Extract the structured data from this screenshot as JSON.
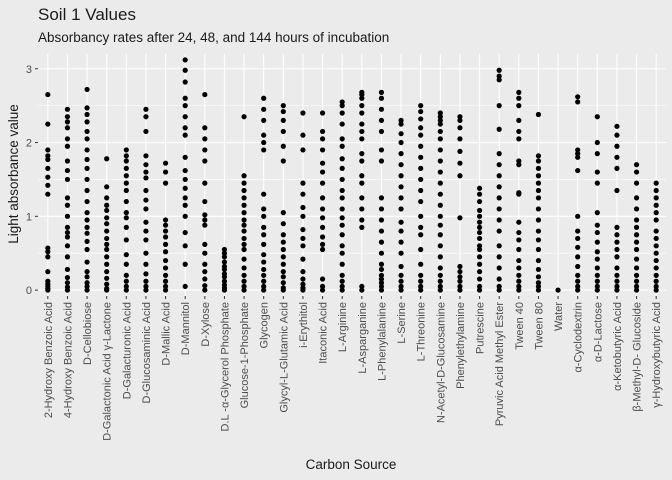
{
  "chart_data": {
    "type": "scatter",
    "title": "Soil 1 Values",
    "subtitle": "Absorbancy rates after 24, 48, and 144 hours of incubation",
    "xlabel": "Carbon Source",
    "ylabel": "Light absorbance value",
    "ylim": [
      -0.08,
      3.2
    ],
    "yticks": [
      0,
      1,
      2,
      3
    ],
    "grid": true,
    "legend": "none",
    "colors": {
      "panel": "#ebebeb",
      "grid": "#ffffff",
      "point": "#000000",
      "text": "#1a1a1a",
      "tick_text": "#4d4d4d"
    },
    "categories": [
      "2-Hydroxy Benzoic Acid",
      "4-Hydroxy Benzoic Acid",
      "D-Cellobiose",
      "D-Galactonic Acid γ-Lactone",
      "D-Galacturonic Acid",
      "D-Glucosaminic Acid",
      "D-Mallic Acid",
      "D-Mannitol",
      "D-Xylose",
      "D.L -α-Glycerol Phosphate",
      "Glucose-1-Phosphate",
      "Glycogen",
      "Glycyl-L-Glutamic Acid",
      "i-Erythitol",
      "Itaconic Acid",
      "L-Arginine",
      "L-Asparganine",
      "L-Phenylalanine",
      "L-Serine",
      "L-Threonine",
      "N-Acetyl-D-Glucosamine",
      "Phenylethylamine",
      "Putrescine",
      "Pyruvic Acid Methyl Ester",
      "Tween 40",
      "Tween 80",
      "Water",
      "α-Cyclodextrin",
      "α-D-Lactose",
      "α-Ketobutyric Acid",
      "β-Methyl-D- Glucoside",
      "γ-Hydroxybutyric Acid"
    ],
    "values": [
      [
        0.0,
        0.02,
        0.05,
        0.08,
        0.12,
        0.25,
        0.45,
        0.52,
        0.57,
        1.3,
        1.42,
        1.53,
        1.65,
        1.77,
        1.82,
        1.9,
        2.25,
        2.65
      ],
      [
        0.0,
        0.04,
        0.1,
        0.17,
        0.28,
        0.45,
        0.6,
        0.72,
        0.78,
        0.85,
        1.0,
        1.15,
        1.25,
        1.5,
        1.62,
        1.75,
        1.95,
        2.05,
        2.2,
        2.28,
        2.35,
        2.45
      ],
      [
        0.0,
        0.05,
        0.1,
        0.18,
        0.25,
        0.38,
        0.55,
        0.66,
        0.77,
        0.85,
        0.95,
        1.05,
        1.2,
        1.35,
        1.5,
        1.65,
        1.77,
        1.9,
        2.05,
        2.15,
        2.28,
        2.38,
        2.47,
        2.72
      ],
      [
        0.0,
        0.02,
        0.08,
        0.16,
        0.25,
        0.35,
        0.45,
        0.55,
        0.62,
        0.7,
        0.8,
        0.9,
        0.98,
        1.08,
        1.15,
        1.25,
        1.4,
        1.78
      ],
      [
        0.0,
        0.05,
        0.12,
        0.2,
        0.35,
        0.48,
        0.68,
        0.85,
        0.98,
        1.05,
        1.2,
        1.35,
        1.45,
        1.55,
        1.65,
        1.75,
        1.82,
        1.9
      ],
      [
        0.0,
        0.05,
        0.12,
        0.22,
        0.35,
        0.5,
        0.68,
        0.8,
        0.92,
        1.1,
        1.22,
        1.35,
        1.52,
        1.6,
        1.7,
        1.82,
        2.15,
        2.35,
        2.45
      ],
      [
        0.0,
        0.05,
        0.12,
        0.2,
        0.3,
        0.4,
        0.52,
        0.62,
        0.72,
        0.8,
        0.88,
        0.95,
        1.45,
        1.6,
        1.72
      ],
      [
        0.05,
        0.35,
        0.6,
        0.78,
        1.0,
        1.15,
        1.25,
        1.38,
        1.5,
        1.62,
        1.8,
        2.1,
        2.2,
        2.35,
        2.5,
        2.6,
        2.82,
        2.98,
        3.12
      ],
      [
        0.0,
        0.06,
        0.15,
        0.25,
        0.35,
        0.5,
        0.62,
        0.88,
        0.95,
        1.02,
        1.2,
        1.45,
        1.75,
        1.9,
        2.05,
        2.2,
        2.65
      ],
      [
        0.0,
        0.03,
        0.07,
        0.12,
        0.18,
        0.22,
        0.28,
        0.32,
        0.38,
        0.45,
        0.5,
        0.55
      ],
      [
        0.0,
        0.05,
        0.12,
        0.2,
        0.3,
        0.42,
        0.55,
        0.62,
        0.7,
        0.8,
        0.88,
        0.95,
        1.05,
        1.15,
        1.25,
        1.35,
        1.45,
        1.55,
        2.35
      ],
      [
        0.0,
        0.05,
        0.12,
        0.2,
        0.28,
        0.38,
        0.48,
        0.62,
        0.75,
        0.85,
        1.0,
        1.1,
        1.3,
        1.9,
        2.0,
        2.1,
        2.3,
        2.45,
        2.6
      ],
      [
        0.0,
        0.03,
        0.1,
        0.18,
        0.25,
        0.35,
        0.45,
        0.55,
        0.65,
        0.75,
        0.9,
        1.05,
        1.75,
        1.95,
        2.15,
        2.3,
        2.42,
        2.5
      ],
      [
        0.0,
        0.03,
        0.08,
        0.15,
        0.25,
        0.42,
        0.6,
        0.7,
        0.82,
        1.0,
        1.12,
        1.3,
        1.45,
        1.9,
        2.1,
        2.4
      ],
      [
        0.0,
        0.05,
        0.15,
        0.55,
        0.62,
        0.72,
        0.85,
        0.98,
        1.1,
        1.25,
        1.45,
        1.6,
        1.72,
        1.9,
        2.05,
        2.15,
        2.4
      ],
      [
        0.0,
        0.05,
        0.12,
        0.2,
        0.35,
        0.5,
        0.6,
        0.75,
        0.88,
        0.98,
        1.1,
        1.25,
        1.35,
        1.5,
        1.65,
        1.78,
        1.95,
        2.05,
        2.25,
        2.4,
        2.5,
        2.55
      ],
      [
        0.0,
        0.05,
        0.85,
        0.95,
        1.1,
        1.25,
        1.45,
        1.55,
        1.75,
        1.85,
        2.05,
        2.15,
        2.25,
        2.4,
        2.5,
        2.6,
        2.65,
        2.68
      ],
      [
        0.0,
        0.05,
        0.1,
        0.15,
        0.2,
        0.28,
        0.35,
        0.5,
        0.65,
        0.8,
        0.95,
        1.1,
        1.25,
        1.75,
        1.9,
        2.15,
        2.3,
        2.45,
        2.6,
        2.68
      ],
      [
        0.0,
        0.05,
        0.12,
        0.2,
        0.32,
        0.5,
        0.65,
        0.8,
        0.92,
        1.1,
        1.25,
        1.4,
        1.55,
        1.7,
        1.85,
        2.0,
        2.12,
        2.25,
        2.3
      ],
      [
        0.0,
        0.05,
        0.12,
        0.2,
        0.35,
        0.55,
        0.75,
        0.85,
        1.0,
        1.2,
        1.35,
        1.5,
        1.65,
        1.8,
        1.95,
        2.1,
        2.2,
        2.32,
        2.42,
        2.5
      ],
      [
        0.0,
        0.05,
        0.12,
        0.2,
        0.3,
        0.45,
        0.6,
        0.75,
        0.88,
        1.0,
        1.15,
        1.3,
        1.45,
        1.6,
        1.75,
        1.9,
        2.05,
        2.15,
        2.25,
        2.3,
        2.35,
        2.4
      ],
      [
        0.0,
        0.05,
        0.12,
        0.18,
        0.25,
        0.32,
        0.98,
        1.55,
        1.72,
        1.88,
        2.05,
        2.2,
        2.3,
        2.35
      ],
      [
        0.0,
        0.05,
        0.15,
        0.25,
        0.35,
        0.45,
        0.55,
        0.6,
        0.7,
        0.78,
        0.85,
        0.92,
        1.0,
        1.08,
        1.2,
        1.3,
        1.38
      ],
      [
        0.0,
        0.05,
        0.15,
        0.3,
        0.45,
        0.6,
        0.8,
        0.95,
        1.1,
        1.25,
        1.4,
        1.55,
        1.7,
        1.85,
        2.18,
        2.5,
        2.85,
        2.9,
        2.98
      ],
      [
        0.0,
        0.05,
        0.12,
        0.2,
        0.3,
        0.4,
        0.55,
        0.68,
        0.78,
        0.92,
        1.3,
        1.32,
        1.7,
        1.75,
        2.05,
        2.15,
        2.3,
        2.5,
        2.6,
        2.68
      ],
      [
        0.0,
        0.05,
        0.1,
        0.18,
        0.28,
        0.4,
        0.55,
        0.68,
        0.8,
        0.95,
        1.1,
        1.25,
        1.35,
        1.45,
        1.55,
        1.65,
        1.75,
        1.82,
        2.38
      ],
      [
        0.0
      ],
      [
        0.0,
        0.05,
        0.12,
        0.2,
        0.32,
        0.45,
        0.58,
        0.7,
        0.8,
        1.0,
        1.62,
        1.8,
        1.85,
        1.9,
        2.55,
        2.62
      ],
      [
        0.0,
        0.05,
        0.12,
        0.2,
        0.3,
        0.42,
        0.52,
        0.65,
        0.78,
        0.88,
        1.05,
        1.45,
        1.6,
        1.85,
        2.0,
        2.35
      ],
      [
        0.0,
        0.05,
        0.12,
        0.2,
        0.3,
        0.45,
        0.55,
        0.65,
        0.75,
        0.85,
        1.35,
        1.65,
        1.8,
        1.95,
        2.1,
        2.22
      ],
      [
        0.0,
        0.05,
        0.12,
        0.2,
        0.3,
        0.42,
        0.55,
        0.65,
        0.75,
        0.85,
        0.95,
        1.1,
        1.25,
        1.45,
        1.6,
        1.7
      ],
      [
        0.0,
        0.05,
        0.12,
        0.2,
        0.3,
        0.4,
        0.5,
        0.6,
        0.7,
        0.8,
        0.95,
        1.05,
        1.15,
        1.25,
        1.35,
        1.45
      ]
    ]
  }
}
